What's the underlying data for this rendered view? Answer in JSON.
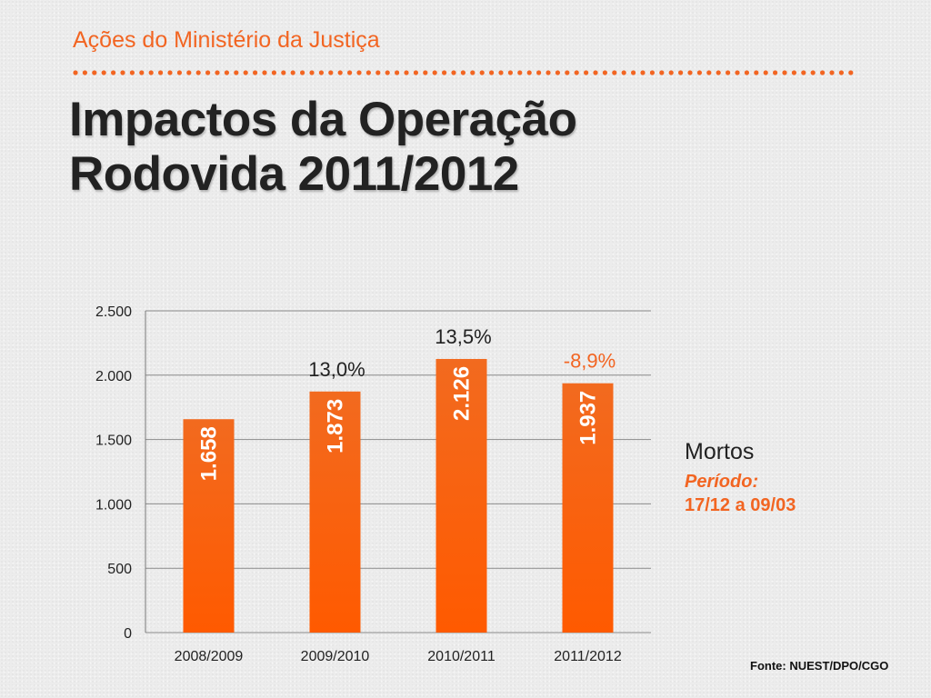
{
  "header": {
    "subtitle": "Ações do Ministério da Justiça",
    "title_line1": "Impactos da Operação",
    "title_line2": "Rodovida 2011/2012"
  },
  "legend": {
    "title": "Mortos",
    "period_label": "Período:",
    "period_dates": "17/12 a 09/03"
  },
  "source": "Fonte: NUEST/DPO/CGO",
  "colors": {
    "accent": "#f26522",
    "bar_top": "#f26a1f",
    "bar_bottom": "#ff5a00",
    "text_dark": "#222222"
  },
  "chart_data": {
    "type": "bar",
    "title": "",
    "xlabel": "",
    "ylabel": "",
    "ylim": [
      0,
      2500
    ],
    "yticks": [
      0,
      500,
      1000,
      1500,
      2000,
      2500
    ],
    "ytick_labels": [
      "0",
      "500",
      "1.000",
      "1.500",
      "2.000",
      "2.500"
    ],
    "grid": true,
    "categories": [
      "2008/2009",
      "2009/2010",
      "2010/2011",
      "2011/2012"
    ],
    "values": [
      1658,
      1873,
      2126,
      1937
    ],
    "value_labels": [
      "1.658",
      "1.873",
      "2.126",
      "1.937"
    ],
    "annotations": [
      "",
      "13,0%",
      "13,5%",
      "-8,9%"
    ],
    "annotation_colors": [
      "#222222",
      "#222222",
      "#222222",
      "#f26522"
    ],
    "series_name": "Mortos"
  }
}
